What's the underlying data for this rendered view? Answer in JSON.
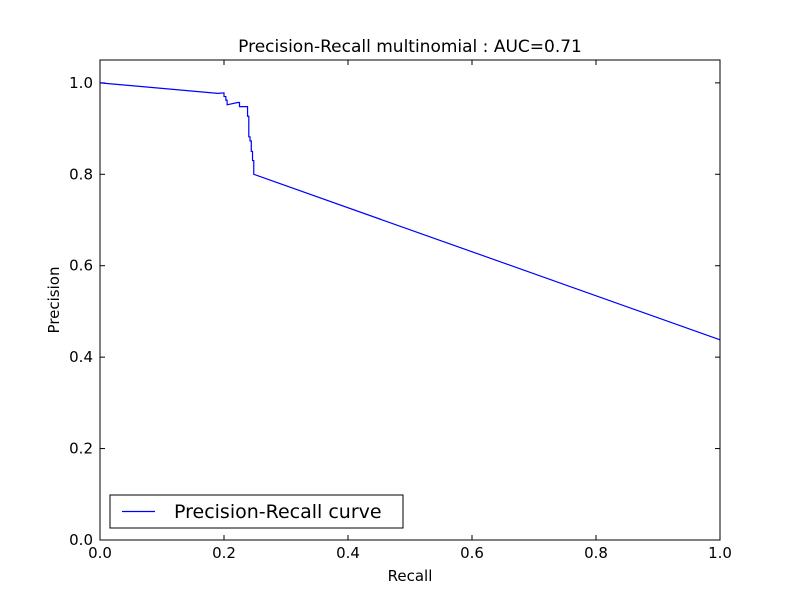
{
  "chart_data": {
    "type": "line",
    "title": "Precision-Recall multinomial : AUC=0.71",
    "xlabel": "Recall",
    "ylabel": "Precision",
    "xlim": [
      0.0,
      1.0
    ],
    "ylim": [
      0.0,
      1.05
    ],
    "xticks": [
      0.0,
      0.2,
      0.4,
      0.6,
      0.8,
      1.0
    ],
    "xtick_labels": [
      "0.0",
      "0.2",
      "0.4",
      "0.6",
      "0.8",
      "1.0"
    ],
    "yticks": [
      0.0,
      0.2,
      0.4,
      0.6,
      0.8,
      1.0
    ],
    "ytick_labels": [
      "0.0",
      "0.2",
      "0.4",
      "0.6",
      "0.8",
      "1.0"
    ],
    "grid": false,
    "legend_position": "lower-left",
    "series": [
      {
        "name": "Precision-Recall curve",
        "color": "#0000ff",
        "x": [
          0.0,
          0.19,
          0.2,
          0.2,
          0.203,
          0.203,
          0.205,
          0.205,
          0.222,
          0.225,
          0.225,
          0.238,
          0.238,
          0.24,
          0.24,
          0.242,
          0.242,
          0.244,
          0.244,
          0.246,
          0.246,
          0.248,
          0.248,
          1.0
        ],
        "y": [
          1.0,
          0.977,
          0.978,
          0.97,
          0.97,
          0.962,
          0.962,
          0.952,
          0.957,
          0.957,
          0.948,
          0.948,
          0.927,
          0.927,
          0.882,
          0.882,
          0.873,
          0.873,
          0.85,
          0.85,
          0.83,
          0.83,
          0.8,
          0.438
        ]
      }
    ]
  }
}
